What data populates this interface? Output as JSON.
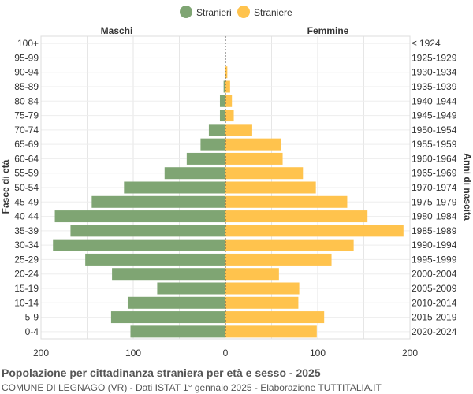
{
  "chart_data": {
    "type": "bar",
    "orientation": "horizontal",
    "title": "Popolazione per cittadinanza straniera per età e sesso - 2025",
    "subtitle": "COMUNE DI LEGNAGO (VR) - Dati ISTAT 1° gennaio 2025 - Elaborazione TUTTITALIA.IT",
    "ylabel_left": "Fasce di età",
    "ylabel_right": "Anni di nascita",
    "left_header": "Maschi",
    "right_header": "Femmine",
    "xlim": [
      -200,
      200
    ],
    "xticks": [
      -200,
      -100,
      0,
      100,
      200
    ],
    "xtick_labels": [
      "200",
      "100",
      "0",
      "100",
      "200"
    ],
    "grid": true,
    "legend_position": "top-center",
    "categories": [
      "100+",
      "95-99",
      "90-94",
      "85-89",
      "80-84",
      "75-79",
      "70-74",
      "65-69",
      "60-64",
      "55-59",
      "50-54",
      "45-49",
      "40-44",
      "35-39",
      "30-34",
      "25-29",
      "20-24",
      "15-19",
      "10-14",
      "5-9",
      "0-4"
    ],
    "birth_years": [
      "≤ 1924",
      "1925-1929",
      "1930-1934",
      "1935-1939",
      "1940-1944",
      "1945-1949",
      "1950-1954",
      "1955-1959",
      "1960-1964",
      "1965-1969",
      "1970-1974",
      "1975-1979",
      "1980-1984",
      "1985-1989",
      "1990-1994",
      "1995-1999",
      "2000-2004",
      "2005-2009",
      "2010-2014",
      "2015-2019",
      "2020-2024"
    ],
    "series": [
      {
        "name": "Stranieri",
        "side": "left",
        "color": "#7fa573",
        "values": [
          0,
          0,
          0,
          2,
          6,
          6,
          18,
          27,
          42,
          66,
          110,
          145,
          185,
          168,
          187,
          152,
          123,
          74,
          106,
          124,
          103
        ]
      },
      {
        "name": "Straniere",
        "side": "right",
        "color": "#ffc34d",
        "values": [
          0,
          0,
          2,
          5,
          7,
          9,
          29,
          60,
          62,
          84,
          98,
          132,
          154,
          193,
          139,
          115,
          58,
          80,
          79,
          107,
          99
        ]
      }
    ]
  }
}
